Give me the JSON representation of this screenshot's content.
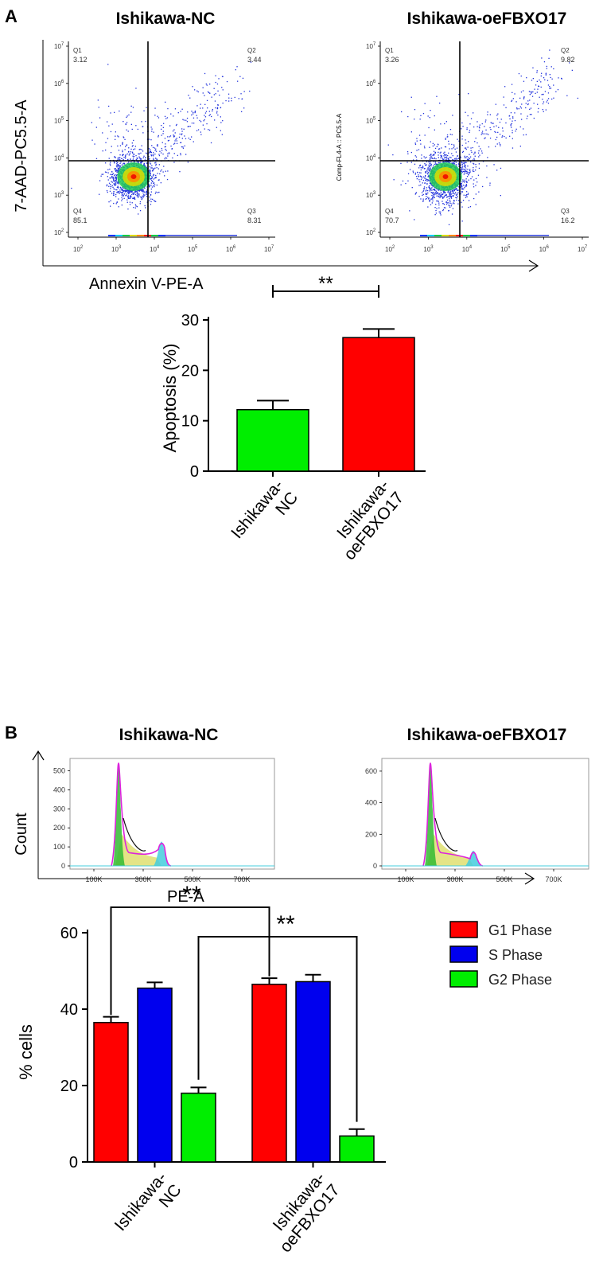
{
  "panel_a": {
    "letter": "A",
    "flow": {
      "y_axis_label": "7-AAD-PC5.5-A",
      "x_axis_label": "Annexin V-PE-A",
      "tick_exponents": [
        "2",
        "3",
        "4",
        "5",
        "6",
        "7"
      ],
      "tick_base": "10",
      "plots": [
        {
          "title": "Ishikawa-NC",
          "side_label": "",
          "quadrants": {
            "Q1": "3.12",
            "Q2": "3.44",
            "Q3": "8.31",
            "Q4": "85.1"
          }
        },
        {
          "title": "Ishikawa-oeFBXO17",
          "side_label": "Comp-FL4-A :: PC5.5-A",
          "quadrants": {
            "Q1": "3.26",
            "Q2": "9.82",
            "Q3": "16.2",
            "Q4": "70.7"
          }
        }
      ],
      "quadrant_names": {
        "Q1": "Q1",
        "Q2": "Q2",
        "Q3": "Q3",
        "Q4": "Q4"
      }
    }
  },
  "panel_b": {
    "letter": "B",
    "histograms": {
      "y_axis_label": "Count",
      "x_axis_label": "PE-A",
      "x_ticks": [
        "100K",
        "300K",
        "500K",
        "700K"
      ],
      "plots": [
        {
          "title": "Ishikawa-NC",
          "y_ticks": [
            "0",
            "100",
            "200",
            "300",
            "400",
            "500"
          ],
          "ymax": 540
        },
        {
          "title": "Ishikawa-oeFBXO17",
          "y_ticks": [
            "0",
            "200",
            "400",
            "600"
          ],
          "ymax": 650
        }
      ]
    }
  },
  "chart_data": [
    {
      "type": "bar",
      "title": "",
      "ylabel": "Apoptosis (%)",
      "xlabel": "",
      "categories": [
        "Ishikawa-NC",
        "Ishikawa-oeFBXO17"
      ],
      "values": [
        12.2,
        26.5
      ],
      "errors": [
        1.8,
        1.7
      ],
      "colors": [
        "#00ee00",
        "#ff0000"
      ],
      "ylim": [
        0,
        30
      ],
      "yticks": [
        "0",
        "10",
        "20",
        "30"
      ],
      "significance": "**"
    },
    {
      "type": "bar",
      "title": "",
      "ylabel": "% cells",
      "xlabel": "",
      "categories": [
        "Ishikawa-NC",
        "Ishikawa-oeFBXO17"
      ],
      "series": [
        {
          "name": "G1 Phase",
          "values": [
            36.5,
            46.5
          ],
          "errors": [
            1.5,
            1.6
          ],
          "color": "#ff0000"
        },
        {
          "name": "S Phase",
          "values": [
            45.5,
            47.2
          ],
          "errors": [
            1.5,
            1.8
          ],
          "color": "#0000ee"
        },
        {
          "name": "G2 Phase",
          "values": [
            18.0,
            6.8
          ],
          "errors": [
            1.5,
            1.8
          ],
          "color": "#00ee00"
        }
      ],
      "ylim": [
        0,
        60
      ],
      "yticks": [
        "0",
        "20",
        "40",
        "60"
      ],
      "legend_position": "top-right",
      "significance": [
        "**",
        "**"
      ]
    }
  ]
}
